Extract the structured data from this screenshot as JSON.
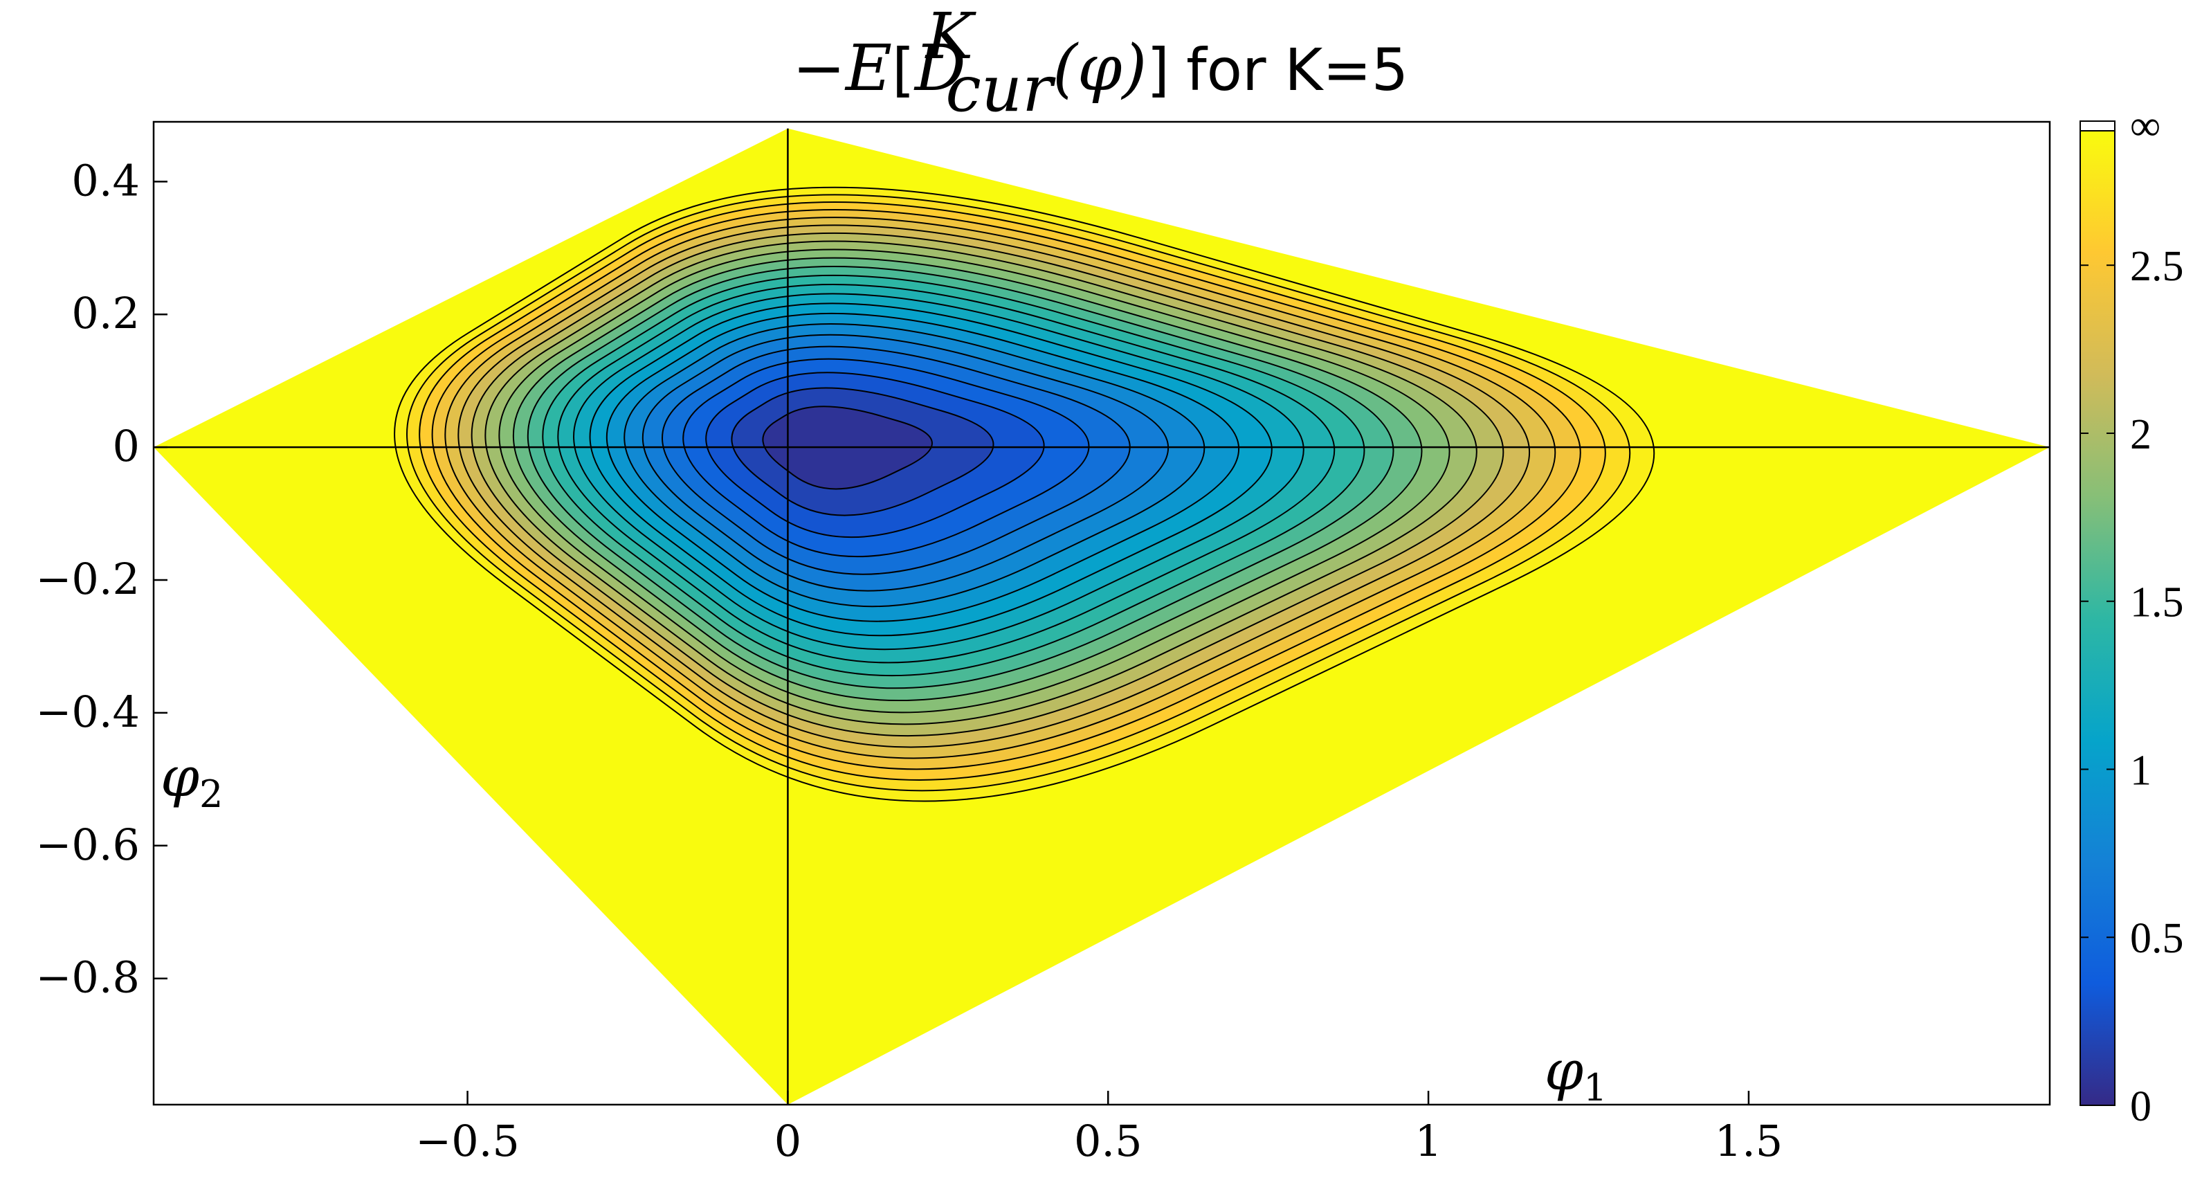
{
  "chart_data": {
    "type": "contour",
    "title": {
      "minus": "−",
      "E": "E",
      "lbracket": "[",
      "D": "D",
      "sup": "K",
      "sub": "cur",
      "arg": "(φ)",
      "rbracket": "]",
      "suffix": "for K=5"
    },
    "xlabel": {
      "symbol": "φ",
      "subscript": "1"
    },
    "ylabel": {
      "symbol": "φ",
      "subscript": "2"
    },
    "xlim": [
      -0.99,
      1.97
    ],
    "ylim": [
      -0.99,
      0.49
    ],
    "x_ticks": [
      -0.5,
      0,
      0.5,
      1,
      1.5
    ],
    "x_tick_labels": [
      "−0.5",
      "0",
      "0.5",
      "1",
      "1.5"
    ],
    "y_ticks": [
      0.4,
      0.2,
      0,
      -0.2,
      -0.4,
      -0.6,
      -0.8
    ],
    "y_tick_labels": [
      "0.4",
      "0.2",
      "0",
      "−0.2",
      "−0.4",
      "−0.6",
      "−0.8"
    ],
    "domain_vertices": [
      [
        -0.99,
        0
      ],
      [
        0,
        0.48
      ],
      [
        1.97,
        0
      ],
      [
        0,
        -0.99
      ]
    ],
    "minimum": {
      "x": 0.05,
      "y": 0.01,
      "value": 0
    },
    "contour_step": 0.125,
    "levels_max": 2.9,
    "outside_region_value": "∞",
    "colorbar": {
      "min": 0,
      "max": 2.9,
      "ticks": [
        0,
        0.5,
        1,
        1.5,
        2,
        2.5
      ],
      "tick_labels": [
        "0",
        "0.5",
        "1",
        "1.5",
        "2",
        "2.5"
      ],
      "infinity_label": "∞",
      "colormap": [
        "#352a87",
        "#0f5cdd",
        "#1481d6",
        "#06a4ca",
        "#2eb7a4",
        "#87bf77",
        "#d1bb59",
        "#fec832",
        "#f9fb0e"
      ]
    },
    "reference_lines": [
      "x=0",
      "y=0"
    ],
    "grid": false
  }
}
